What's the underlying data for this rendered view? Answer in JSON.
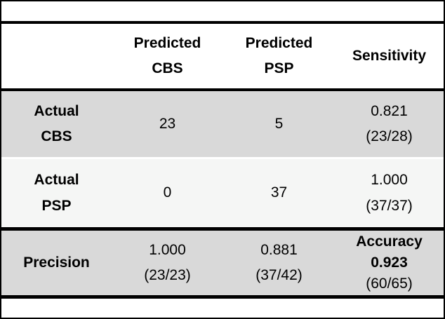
{
  "chart_data": {
    "type": "table",
    "description": "Confusion matrix with per-class sensitivity, precision and overall accuracy",
    "columns": [
      "",
      "Predicted CBS",
      "Predicted PSP",
      "Sensitivity"
    ],
    "rows_flat": [
      [
        "Actual CBS",
        "23",
        "5",
        "0.821 (23/28)"
      ],
      [
        "Actual PSP",
        "0",
        "37",
        "1.000 (37/37)"
      ],
      [
        "Precision",
        "1.000 (23/23)",
        "0.881 (37/42)",
        "Accuracy 0.923 (60/65)"
      ]
    ],
    "header": {
      "corner": "",
      "predicted_cbs": {
        "line1": "Predicted",
        "line2": "CBS"
      },
      "predicted_psp": {
        "line1": "Predicted",
        "line2": "PSP"
      },
      "sensitivity": "Sensitivity"
    },
    "body": [
      {
        "row_label": {
          "line1": "Actual",
          "line2": "CBS"
        },
        "predicted_cbs": "23",
        "predicted_psp": "5",
        "sensitivity": {
          "value": "0.821",
          "fraction": "(23/28)"
        }
      },
      {
        "row_label": {
          "line1": "Actual",
          "line2": "PSP"
        },
        "predicted_cbs": "0",
        "predicted_psp": "37",
        "sensitivity": {
          "value": "1.000",
          "fraction": "(37/37)"
        }
      }
    ],
    "footer": {
      "row_label": "Precision",
      "predicted_cbs": {
        "value": "1.000",
        "fraction": "(23/23)"
      },
      "predicted_psp": {
        "value": "0.881",
        "fraction": "(37/42)"
      },
      "accuracy": {
        "label": "Accuracy",
        "value": "0.923",
        "fraction": "(60/65)"
      }
    }
  },
  "colors": {
    "shaded_row": "#d9d9d9",
    "light_row": "#f5f6f5",
    "rule": "#000000",
    "background": "#ffffff",
    "text": "#000000"
  }
}
